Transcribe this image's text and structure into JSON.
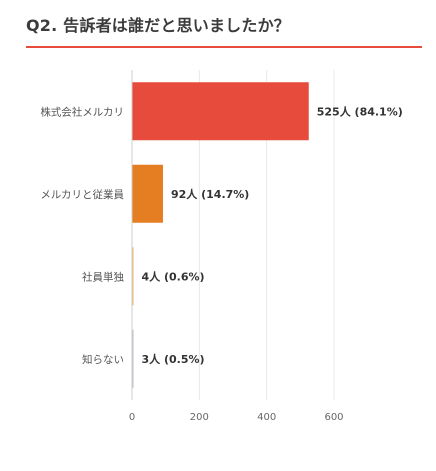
{
  "question": {
    "title": "Q2. 告訴者は誰だと思いましたか？"
  },
  "colors": {
    "accent": "#e64b3c",
    "bars": [
      "#e64b3c",
      "#e57e22",
      "#f2b46a",
      "#b8c2d0"
    ],
    "grid": "#e8e8e8",
    "axis": "#cccccc"
  },
  "chart_data": {
    "type": "bar",
    "orientation": "horizontal",
    "categories": [
      "株式会社メルカリ",
      "メルカリと従業員",
      "社員単独",
      "知らない"
    ],
    "values": [
      525,
      92,
      4,
      3
    ],
    "value_labels": [
      "525人 (84.1%)",
      "92人 (14.7%)",
      "4人 (0.6%)",
      "3人 (0.5%)"
    ],
    "percentages": [
      84.1,
      14.7,
      0.6,
      0.5
    ],
    "unit": "人",
    "xlim": [
      0,
      600
    ],
    "xticks": [
      0,
      200,
      400,
      600
    ],
    "grid": true,
    "legend": "none",
    "title": "",
    "xlabel": "",
    "ylabel": ""
  }
}
